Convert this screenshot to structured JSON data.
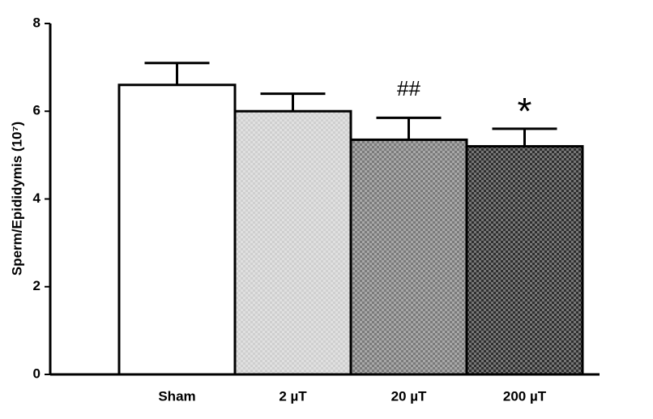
{
  "chart_data": {
    "type": "bar",
    "y_label": "Sperm/Epididymis (10⁷)",
    "categories": [
      "Sham",
      "2 µT",
      "20 µT",
      "200 µT"
    ],
    "values": [
      6.6,
      6.0,
      5.35,
      5.2
    ],
    "errors": [
      0.5,
      0.4,
      0.5,
      0.4
    ],
    "annotations": [
      null,
      null,
      "##",
      "*"
    ],
    "colors": [
      "#ffffff",
      "#cfcfcf",
      "#7a7a7a",
      "#2e2e2e"
    ],
    "ylim": [
      0,
      8
    ],
    "yticks": [
      0,
      2,
      4,
      6,
      8
    ]
  }
}
